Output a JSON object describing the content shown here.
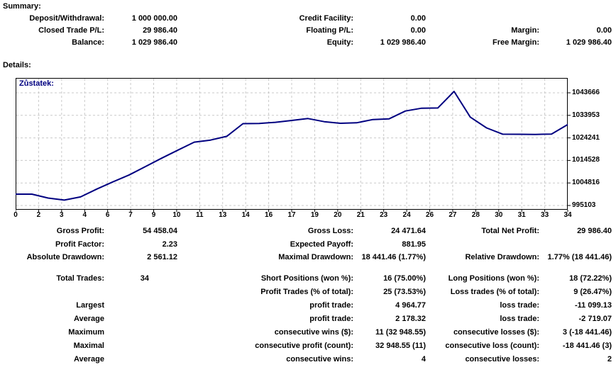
{
  "summary": {
    "heading": "Summary:",
    "rows": [
      {
        "a_label": "Deposit/Withdrawal:",
        "a_value": "1 000 000.00",
        "b_label": "Credit Facility:",
        "b_value": "0.00",
        "c_label": "",
        "c_value": ""
      },
      {
        "a_label": "Closed Trade P/L:",
        "a_value": "29 986.40",
        "b_label": "Floating P/L:",
        "b_value": "0.00",
        "c_label": "Margin:",
        "c_value": "0.00"
      },
      {
        "a_label": "Balance:",
        "a_value": "1 029 986.40",
        "b_label": "Equity:",
        "b_value": "1 029 986.40",
        "c_label": "Free Margin:",
        "c_value": "1 029 986.40"
      }
    ]
  },
  "details": {
    "heading": "Details:"
  },
  "chart_data": {
    "type": "line",
    "title": "Zůstatek:",
    "series": [
      {
        "name": "Balance",
        "values": [
          1000000.0,
          1000000.0,
          998300,
          997438.88,
          998800,
          1002200,
          1005300,
          1008300,
          1011900,
          1015500,
          1019000,
          1022400,
          1023300,
          1024900,
          1030387.43,
          1030450,
          1030950,
          1031760,
          1032580,
          1031230,
          1030530,
          1030730,
          1032150,
          1032460,
          1035820,
          1037040,
          1037140,
          1044280.34,
          1033181.21,
          1028557.95,
          1025838.88,
          1025800,
          1025750,
          1025900,
          1029986.4
        ]
      }
    ],
    "x_tick_labels": [
      "0",
      "2",
      "3",
      "4",
      "6",
      "7",
      "9",
      "10",
      "11",
      "13",
      "14",
      "16",
      "17",
      "19",
      "20",
      "21",
      "23",
      "24",
      "26",
      "27",
      "28",
      "30",
      "31",
      "33",
      "34"
    ],
    "y_tick_labels": [
      "1043666",
      "1033953",
      "1024241",
      "1014528",
      "1004816",
      "995103"
    ],
    "y_tick_values": [
      1043666,
      1033953,
      1024241,
      1014528,
      1004816,
      995103
    ],
    "xlim": [
      0,
      34
    ],
    "ylim": [
      993271,
      1050075
    ],
    "grid": true,
    "legend_position": "none",
    "line_color": "#000080",
    "grid_color": "#c9c9c9",
    "border_color": "#000000"
  },
  "stats": {
    "rows": [
      {
        "a_label": "Gross Profit:",
        "a_value": "54 458.04",
        "b_label": "Gross Loss:",
        "b_value": "24 471.64",
        "c_label": "Total Net Profit:",
        "c_value": "29 986.40"
      },
      {
        "a_label": "Profit Factor:",
        "a_value": "2.23",
        "b_label": "Expected Payoff:",
        "b_value": "881.95",
        "c_label": "",
        "c_value": ""
      },
      {
        "a_label": "Absolute Drawdown:",
        "a_value": "2 561.12",
        "b_label": "Maximal Drawdown:",
        "b_value": "18 441.46 (1.77%)",
        "c_label": "Relative Drawdown:",
        "c_value": "1.77% (18 441.46)"
      }
    ]
  },
  "trades": {
    "rows": [
      {
        "a_label": "Total Trades:",
        "a_value": "34",
        "b_label": "Short Positions (won %):",
        "b_value": "16 (75.00%)",
        "c_label": "Long Positions (won %):",
        "c_value": "18 (72.22%)"
      },
      {
        "a_label": "",
        "a_value": "",
        "b_label": "Profit Trades (% of total):",
        "b_value": "25 (73.53%)",
        "c_label": "Loss trades (% of total):",
        "c_value": "9 (26.47%)"
      },
      {
        "a_label": "Largest",
        "a_value": "",
        "b_label": "profit trade:",
        "b_value": "4 964.77",
        "c_label": "loss trade:",
        "c_value": "-11 099.13"
      },
      {
        "a_label": "Average",
        "a_value": "",
        "b_label": "profit trade:",
        "b_value": "2 178.32",
        "c_label": "loss trade:",
        "c_value": "-2 719.07"
      },
      {
        "a_label": "Maximum",
        "a_value": "",
        "b_label": "consecutive wins ($):",
        "b_value": "11 (32 948.55)",
        "c_label": "consecutive losses ($):",
        "c_value": "3 (-18 441.46)"
      },
      {
        "a_label": "Maximal",
        "a_value": "",
        "b_label": "consecutive profit (count):",
        "b_value": "32 948.55 (11)",
        "c_label": "consecutive loss (count):",
        "c_value": "-18 441.46 (3)"
      },
      {
        "a_label": "Average",
        "a_value": "",
        "b_label": "consecutive wins:",
        "b_value": "4",
        "c_label": "consecutive losses:",
        "c_value": "2"
      }
    ]
  }
}
